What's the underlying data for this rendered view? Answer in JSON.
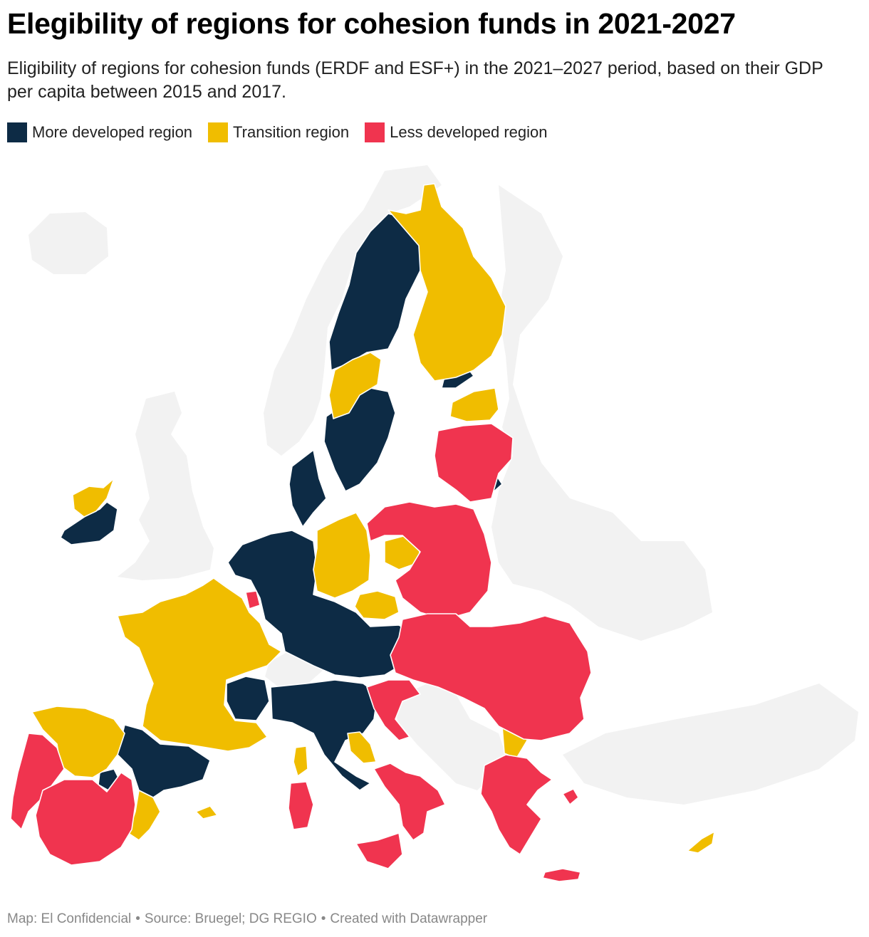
{
  "title": "Elegibility of regions for cohesion funds in 2021-2027",
  "subtitle": "Eligibility of regions for cohesion funds (ERDF and ESF+) in the 2021–2027 period, based on their GDP per capita between 2015 and 2017.",
  "legend": [
    {
      "label": "More developed region",
      "color": "#0d2b45"
    },
    {
      "label": "Transition region",
      "color": "#f0bd00"
    },
    {
      "label": "Less developed region",
      "color": "#f0344f"
    }
  ],
  "colors": {
    "more_developed": "#0d2b45",
    "transition": "#f0bd00",
    "less_developed": "#f0344f",
    "non_eu_land": "#f2f2f2",
    "borders": "#ffffff"
  },
  "footer": {
    "map_credit": "Map: El Confidencial",
    "source": "Source: Bruegel; DG REGIO",
    "created_with": "Created with Datawrapper",
    "separator": "•"
  }
}
